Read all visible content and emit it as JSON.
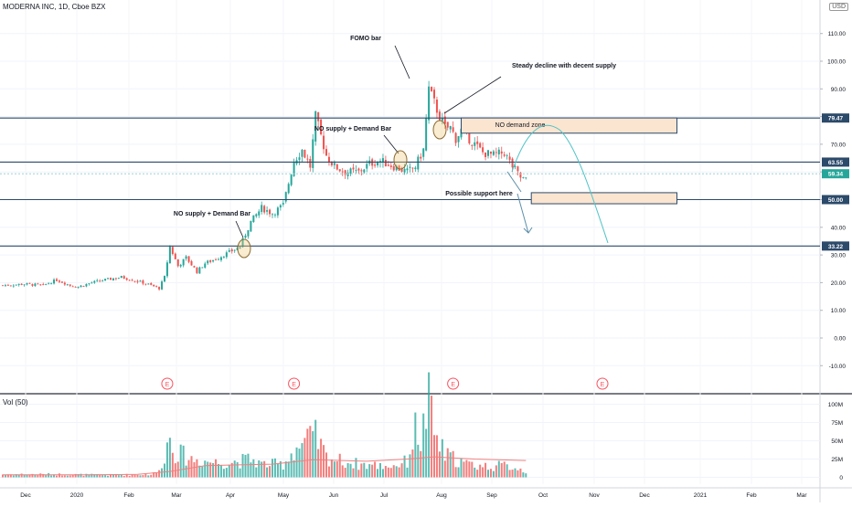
{
  "header": {
    "symbol_title": "MODERNA INC, 1D, Cboe BZX",
    "currency": "USD"
  },
  "volume_pane": {
    "title": "Vol (50)"
  },
  "annotations": {
    "fomo": "FOMO bar",
    "steady": "Steady decline with decent supply",
    "no_supply_1": "NO supply + Demand Bar",
    "no_supply_2": "NO supply + Demand Bar",
    "no_demand_zone": "NO demand zone",
    "support": "Possible support here"
  },
  "earnings_marker": "E",
  "colors": {
    "up": "#26a69a",
    "down": "#ef5350",
    "level_line": "#2c4a6a",
    "zone_fill": "#fbe5d0",
    "projection": "#4fc3c7",
    "volume_ma": "#f08080"
  },
  "chart_data": {
    "type": "candlestick",
    "x_tick_labels": [
      "Dec",
      "2020",
      "Feb",
      "Mar",
      "Apr",
      "May",
      "Jun",
      "Jul",
      "Aug",
      "Sep",
      "Oct",
      "Nov",
      "Dec",
      "2021",
      "Feb",
      "Mar"
    ],
    "price_axis": {
      "ticks": [
        110,
        100,
        90,
        80,
        70,
        60,
        50,
        40,
        30,
        20,
        10,
        0,
        -10
      ],
      "tick_labels": [
        "110.00",
        "100.00",
        "90.00",
        "80.00",
        "70.00",
        "60.00",
        "50.00",
        "40.00",
        "30.00",
        "20.00",
        "10.00",
        "0.00",
        "-10.00"
      ],
      "ylim": [
        -20,
        122
      ]
    },
    "horizontal_levels": [
      79.47,
      63.55,
      50.0,
      33.22
    ],
    "level_labels": [
      "79.47",
      "63.55",
      "50.00",
      "33.22"
    ],
    "last_price": 59.34,
    "last_price_label": "59.34",
    "volume_axis": {
      "ticks": [
        100,
        75,
        50,
        25,
        0
      ],
      "tick_labels": [
        "100M",
        "75M",
        "50M",
        "25M",
        "0"
      ],
      "ylim": [
        0,
        110
      ],
      "unit": "M"
    },
    "price_anchors": [
      [
        0,
        19
      ],
      [
        8,
        19.5
      ],
      [
        15,
        19
      ],
      [
        20,
        21
      ],
      [
        25,
        19
      ],
      [
        28,
        18.5
      ],
      [
        33,
        20
      ],
      [
        38,
        21
      ],
      [
        44,
        22
      ],
      [
        48,
        21
      ],
      [
        52,
        20
      ],
      [
        55,
        19
      ],
      [
        58,
        18
      ],
      [
        60,
        22
      ],
      [
        62,
        33
      ],
      [
        65,
        26
      ],
      [
        68,
        29
      ],
      [
        72,
        24
      ],
      [
        75,
        27
      ],
      [
        80,
        29
      ],
      [
        84,
        31
      ],
      [
        88,
        33
      ],
      [
        92,
        42
      ],
      [
        96,
        47
      ],
      [
        100,
        45
      ],
      [
        104,
        48
      ],
      [
        108,
        64
      ],
      [
        111,
        68
      ],
      [
        114,
        62
      ],
      [
        116,
        80
      ],
      [
        118,
        73
      ],
      [
        120,
        66
      ],
      [
        123,
        62
      ],
      [
        127,
        60
      ],
      [
        132,
        60
      ],
      [
        136,
        63
      ],
      [
        140,
        64
      ],
      [
        145,
        62
      ],
      [
        150,
        60
      ],
      [
        153,
        62
      ],
      [
        156,
        68
      ],
      [
        158,
        90
      ],
      [
        160,
        85
      ],
      [
        162,
        80
      ],
      [
        164,
        76
      ],
      [
        166,
        76
      ],
      [
        168,
        72
      ],
      [
        170,
        75
      ],
      [
        172,
        73
      ],
      [
        175,
        70
      ],
      [
        178,
        67
      ],
      [
        182,
        66
      ],
      [
        186,
        67
      ],
      [
        189,
        62
      ],
      [
        192,
        58
      ],
      [
        194,
        57
      ]
    ],
    "volume_anchors": [
      [
        0,
        4
      ],
      [
        20,
        4
      ],
      [
        40,
        3
      ],
      [
        55,
        4
      ],
      [
        58,
        8
      ],
      [
        62,
        55
      ],
      [
        64,
        35
      ],
      [
        70,
        25
      ],
      [
        80,
        20
      ],
      [
        88,
        22
      ],
      [
        92,
        25
      ],
      [
        96,
        18
      ],
      [
        104,
        18
      ],
      [
        108,
        38
      ],
      [
        112,
        48
      ],
      [
        116,
        55
      ],
      [
        120,
        28
      ],
      [
        126,
        22
      ],
      [
        132,
        18
      ],
      [
        140,
        16
      ],
      [
        145,
        16
      ],
      [
        150,
        22
      ],
      [
        153,
        65
      ],
      [
        155,
        50
      ],
      [
        158,
        102
      ],
      [
        160,
        60
      ],
      [
        164,
        30
      ],
      [
        168,
        25
      ],
      [
        172,
        18
      ],
      [
        180,
        15
      ],
      [
        186,
        16
      ],
      [
        190,
        14
      ],
      [
        194,
        8
      ]
    ],
    "volume_ma50": [
      [
        0,
        3.5
      ],
      [
        30,
        3.5
      ],
      [
        50,
        4
      ],
      [
        62,
        8
      ],
      [
        75,
        16
      ],
      [
        100,
        18
      ],
      [
        115,
        24
      ],
      [
        135,
        22
      ],
      [
        150,
        25
      ],
      [
        160,
        28
      ],
      [
        175,
        25
      ],
      [
        194,
        23
      ]
    ],
    "earnings_dates_bar_index": [
      61,
      108,
      167,
      228
    ],
    "projection_curve": "green arc from ~60 (Sep) peaking near 76 and falling to ~33 by Nov",
    "zones": [
      {
        "label": "NO demand zone",
        "from_bar": 170,
        "to_bar": 250,
        "low": 74,
        "high": 79.5
      },
      {
        "label": "Possible support here",
        "from_bar": 196,
        "to_bar": 250,
        "low": 48.5,
        "high": 52.5
      }
    ]
  }
}
